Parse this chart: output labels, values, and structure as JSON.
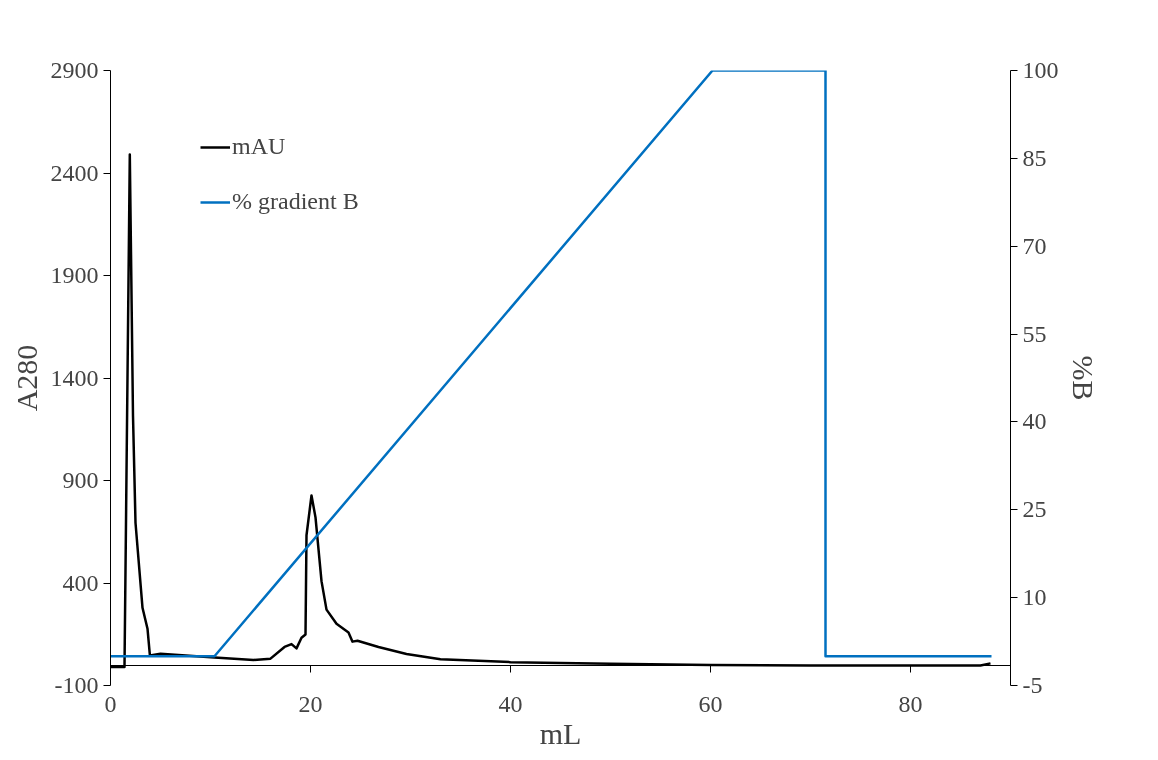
{
  "chart_data": {
    "type": "line",
    "xlabel": "mL",
    "ylabel": "A280",
    "y2label": "%B",
    "xlim": [
      0,
      90
    ],
    "xticks": [
      0,
      20,
      40,
      60,
      80
    ],
    "ylim": [
      -100,
      2900
    ],
    "yticks": [
      -100,
      400,
      900,
      1400,
      1900,
      2400,
      2900
    ],
    "y2lim": [
      -5,
      100
    ],
    "y2ticks": [
      -5,
      10,
      25,
      40,
      55,
      70,
      85,
      100
    ],
    "grid": false,
    "legend": "top left",
    "line_style": "solid",
    "marker": "none",
    "series": [
      {
        "name": "mAU",
        "color": "#000000",
        "x": [
          0,
          1.2,
          1.4,
          1.93,
          2.25,
          2.5,
          3.2,
          3.7,
          3.94,
          5,
          10.4,
          14.3,
          16,
          17.4,
          18.1,
          18.6,
          19.1,
          19.5,
          19.6,
          20.1,
          20.5,
          21.1,
          21.6,
          22.6,
          23.8,
          24.2,
          24.7,
          26.8,
          29.6,
          33,
          40,
          50,
          60,
          70,
          80,
          87,
          88
        ],
        "values": [
          -10,
          -10,
          -10,
          2490,
          1215,
          694,
          279,
          177,
          47,
          55,
          36,
          24,
          31,
          88,
          102,
          81,
          133,
          149,
          633,
          827,
          720,
          409,
          270,
          201,
          159,
          114,
          118,
          88,
          54,
          28,
          14,
          6,
          0,
          -2,
          -3,
          -2,
          8
        ]
      },
      {
        "name": "% gradient B",
        "color": "#0070c0",
        "axis": "y2",
        "x": [
          0,
          10.4,
          60.2,
          71.5,
          71.5,
          88.1
        ],
        "values": [
          0,
          0,
          100,
          100,
          0,
          0
        ]
      }
    ]
  }
}
